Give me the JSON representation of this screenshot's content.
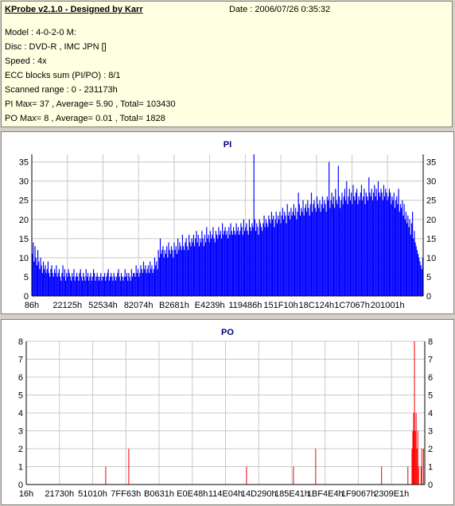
{
  "header": {
    "title": "KProbe v2.1.0 - Designed by Karr",
    "date": "Date : 2006/07/26 0:35:32",
    "lines": [
      "Model : 4-0-2-0 M:",
      "Disc : DVD-R , IMC JPN []",
      "Speed : 4x",
      "ECC blocks sum (PI/PO) : 8/1",
      "Scanned range : 0 - 231173h",
      "PI Max= 37 , Average= 5.90 , Total= 103430",
      "PO Max= 8 , Average= 0.01 , Total= 1828"
    ]
  },
  "colors": {
    "pi": "#0000ff",
    "po": "#ff0000",
    "grid": "#c8c8c8",
    "title": "#000080"
  },
  "chart_data": [
    {
      "type": "bar",
      "title": "PI",
      "ylim": [
        0,
        37
      ],
      "yticks": [
        0,
        5,
        10,
        15,
        20,
        25,
        30,
        35
      ],
      "x_tick_labels": [
        "86h",
        "22125h",
        "52534h",
        "82074h",
        "B2681h",
        "E4239h",
        "119486h",
        "151F10h",
        "18C124h",
        "1C7067h",
        "201001h"
      ],
      "scan_range": [
        0,
        231173
      ],
      "series": [
        {
          "values": [
            11,
            14,
            9,
            13,
            10,
            8,
            12,
            9,
            7,
            10,
            8,
            6,
            9,
            7,
            8,
            6,
            7,
            9,
            6,
            5,
            7,
            8,
            6,
            5,
            7,
            6,
            8,
            5,
            6,
            7,
            5,
            4,
            6,
            8,
            5,
            7,
            4,
            6,
            5,
            7,
            6,
            5,
            4,
            6,
            5,
            7,
            4,
            5,
            6,
            5,
            4,
            6,
            7,
            5,
            4,
            6,
            5,
            4,
            7,
            5,
            6,
            4,
            5,
            6,
            4,
            5,
            7,
            6,
            4,
            5,
            6,
            5,
            4,
            5,
            6,
            4,
            5,
            5,
            6,
            4,
            5,
            6,
            7,
            4,
            5,
            6,
            5,
            4,
            6,
            5,
            4,
            5,
            6,
            7,
            5,
            4,
            6,
            5,
            4,
            5,
            7,
            5,
            6,
            4,
            6,
            5,
            4,
            7,
            5,
            6,
            6,
            5,
            8,
            6,
            7,
            5,
            6,
            8,
            7,
            6,
            9,
            7,
            8,
            6,
            7,
            8,
            6,
            9,
            7,
            8,
            6,
            7,
            10,
            8,
            9,
            7,
            12,
            10,
            15,
            11,
            12,
            13,
            10,
            12,
            11,
            13,
            10,
            14,
            12,
            11,
            13,
            12,
            10,
            14,
            12,
            13,
            11,
            15,
            12,
            14,
            13,
            12,
            16,
            13,
            12,
            14,
            15,
            13,
            12,
            16,
            14,
            13,
            15,
            14,
            16,
            13,
            15,
            17,
            14,
            16,
            13,
            15,
            14,
            17,
            15,
            13,
            16,
            14,
            18,
            15,
            16,
            14,
            17,
            15,
            16,
            18,
            15,
            14,
            17,
            16,
            15,
            18,
            16,
            17,
            15,
            19,
            16,
            17,
            18,
            16,
            17,
            15,
            18,
            16,
            19,
            17,
            16,
            18,
            17,
            16,
            19,
            17,
            18,
            16,
            17,
            19,
            18,
            16,
            20,
            17,
            18,
            19,
            17,
            16,
            20,
            18,
            17,
            19,
            18,
            37,
            20,
            17,
            19,
            18,
            16,
            20,
            19,
            18,
            17,
            19,
            21,
            18,
            20,
            19,
            18,
            21,
            20,
            19,
            22,
            20,
            21,
            18,
            20,
            22,
            19,
            21,
            20,
            22,
            19,
            21,
            23,
            20,
            22,
            21,
            19,
            24,
            21,
            22,
            20,
            23,
            21,
            22,
            24,
            21,
            23,
            20,
            22,
            27,
            24,
            21,
            23,
            22,
            25,
            21,
            23,
            24,
            22,
            25,
            23,
            21,
            24,
            27,
            22,
            24,
            25,
            23,
            22,
            26,
            24,
            23,
            25,
            22,
            24,
            26,
            23,
            25,
            24,
            22,
            26,
            25,
            35,
            23,
            25,
            27,
            24,
            26,
            23,
            28,
            25,
            24,
            34,
            26,
            23,
            25,
            27,
            24,
            26,
            28,
            25,
            30,
            24,
            26,
            28,
            25,
            27,
            24,
            29,
            26,
            25,
            27,
            28,
            24,
            26,
            25,
            27,
            29,
            25,
            26,
            28,
            24,
            27,
            26,
            25,
            31,
            27,
            26,
            28,
            25,
            27,
            29,
            26,
            28,
            25,
            30,
            27,
            26,
            28,
            27,
            25,
            29,
            26,
            28,
            27,
            25,
            26,
            28,
            27,
            24,
            26,
            25,
            27,
            23,
            25,
            26,
            24,
            28,
            22,
            24,
            23,
            25,
            21,
            24,
            20,
            22,
            19,
            21,
            18,
            20,
            16,
            19,
            22,
            15,
            17,
            14,
            13,
            12,
            11,
            10,
            9,
            8,
            7,
            10
          ]
        }
      ]
    },
    {
      "type": "bar",
      "title": "PO",
      "ylim": [
        0,
        8
      ],
      "yticks": [
        0,
        1,
        2,
        3,
        4,
        5,
        6,
        7,
        8
      ],
      "x_tick_labels": [
        "16h",
        "21730h",
        "51010h",
        "7FF63h",
        "B0631h",
        "E0E48h",
        "114E04h",
        "14D290h",
        "185E41h",
        "1BF4E4h",
        "1F9067h",
        "2309E1h"
      ],
      "scan_range": [
        0,
        231173
      ],
      "series": [
        {
          "values": [
            0,
            0,
            0,
            0,
            0,
            0,
            0,
            0,
            0,
            0,
            0,
            0,
            0,
            0,
            0,
            0,
            0,
            0,
            0,
            0,
            0,
            0,
            0,
            0,
            0,
            0,
            0,
            0,
            0,
            0,
            0,
            0,
            0,
            0,
            0,
            0,
            0,
            0,
            0,
            0,
            0,
            0,
            0,
            0,
            0,
            0,
            0,
            0,
            0,
            0,
            0,
            0,
            0,
            0,
            0,
            0,
            0,
            0,
            0,
            0,
            0,
            0,
            0,
            0,
            0,
            0,
            0,
            0,
            0,
            0,
            0,
            0,
            0,
            0,
            0,
            0,
            0,
            0,
            0,
            0,
            0,
            0,
            0,
            0,
            0,
            0,
            0,
            0,
            0,
            0,
            0,
            0,
            0,
            0,
            0,
            0,
            1,
            0,
            0,
            0,
            0,
            0,
            0,
            0,
            0,
            0,
            0,
            0,
            0,
            0,
            0,
            0,
            0,
            0,
            0,
            0,
            0,
            0,
            0,
            0,
            0,
            0,
            0,
            0,
            2,
            0,
            0,
            0,
            0,
            0,
            0,
            0,
            0,
            0,
            0,
            0,
            0,
            0,
            0,
            0,
            0,
            0,
            0,
            0,
            0,
            0,
            0,
            0,
            0,
            0,
            0,
            0,
            0,
            0,
            0,
            0,
            0,
            0,
            0,
            0,
            0,
            0,
            0,
            0,
            0,
            0,
            0,
            0,
            0,
            0,
            0,
            0,
            0,
            0,
            0,
            0,
            0,
            0,
            0,
            0,
            0,
            0,
            0,
            0,
            0,
            0,
            0,
            0,
            0,
            0,
            0,
            0,
            0,
            0,
            0,
            0,
            0,
            0,
            0,
            0,
            0,
            0,
            0,
            0,
            0,
            0,
            0,
            0,
            0,
            0,
            0,
            0,
            0,
            0,
            0,
            0,
            0,
            0,
            0,
            0,
            0,
            0,
            0,
            0,
            0,
            0,
            0,
            0,
            0,
            0,
            0,
            0,
            0,
            0,
            0,
            0,
            0,
            0,
            0,
            0,
            0,
            0,
            0,
            0,
            0,
            0,
            0,
            0,
            0,
            0,
            0,
            0,
            0,
            0,
            0,
            0,
            0,
            0,
            0,
            0,
            0,
            0,
            0,
            0,
            0,
            0,
            0,
            1,
            0,
            0,
            0,
            0,
            0,
            0,
            0,
            0,
            0,
            0,
            0,
            0,
            0,
            0,
            0,
            0,
            0,
            0,
            0,
            0,
            0,
            0,
            0,
            0,
            0,
            0,
            0,
            0,
            0,
            0,
            0,
            0,
            0,
            0,
            0,
            0,
            0,
            0,
            0,
            0,
            0,
            0,
            0,
            0,
            0,
            0,
            0,
            0,
            0,
            0,
            0,
            0,
            0,
            0,
            0,
            0,
            1,
            0,
            0,
            0,
            0,
            0,
            0,
            0,
            0,
            0,
            0,
            0,
            0,
            0,
            0,
            0,
            0,
            0,
            0,
            0,
            0,
            0,
            0,
            0,
            0,
            0,
            0,
            2,
            0,
            0,
            0,
            0,
            0,
            0,
            0,
            0,
            0,
            0,
            0,
            0,
            0,
            0,
            0,
            0,
            0,
            0,
            0,
            0,
            0,
            0,
            0,
            0,
            0,
            0,
            0,
            0,
            0,
            0,
            0,
            0,
            0,
            0,
            0,
            0,
            0,
            0,
            0,
            0,
            0,
            0,
            0,
            0,
            0,
            0,
            0,
            0,
            0,
            0,
            0,
            0,
            0,
            0,
            0,
            0,
            0,
            0,
            0,
            0,
            0,
            0,
            0,
            0,
            0,
            0,
            0,
            0,
            0,
            0,
            0,
            0,
            0,
            0,
            0,
            0,
            0,
            0,
            0,
            1,
            0,
            0,
            0,
            0,
            0,
            0,
            0,
            0,
            0,
            0,
            0,
            0,
            0,
            0,
            0,
            0,
            0,
            0,
            0,
            0,
            0,
            0,
            0,
            0,
            0,
            0,
            0,
            0,
            0,
            0,
            0,
            1,
            0,
            0,
            0,
            0,
            2,
            3,
            4,
            8,
            3,
            4,
            2,
            3,
            1,
            0,
            0,
            1,
            2,
            0,
            2,
            0
          ]
        }
      ]
    }
  ]
}
